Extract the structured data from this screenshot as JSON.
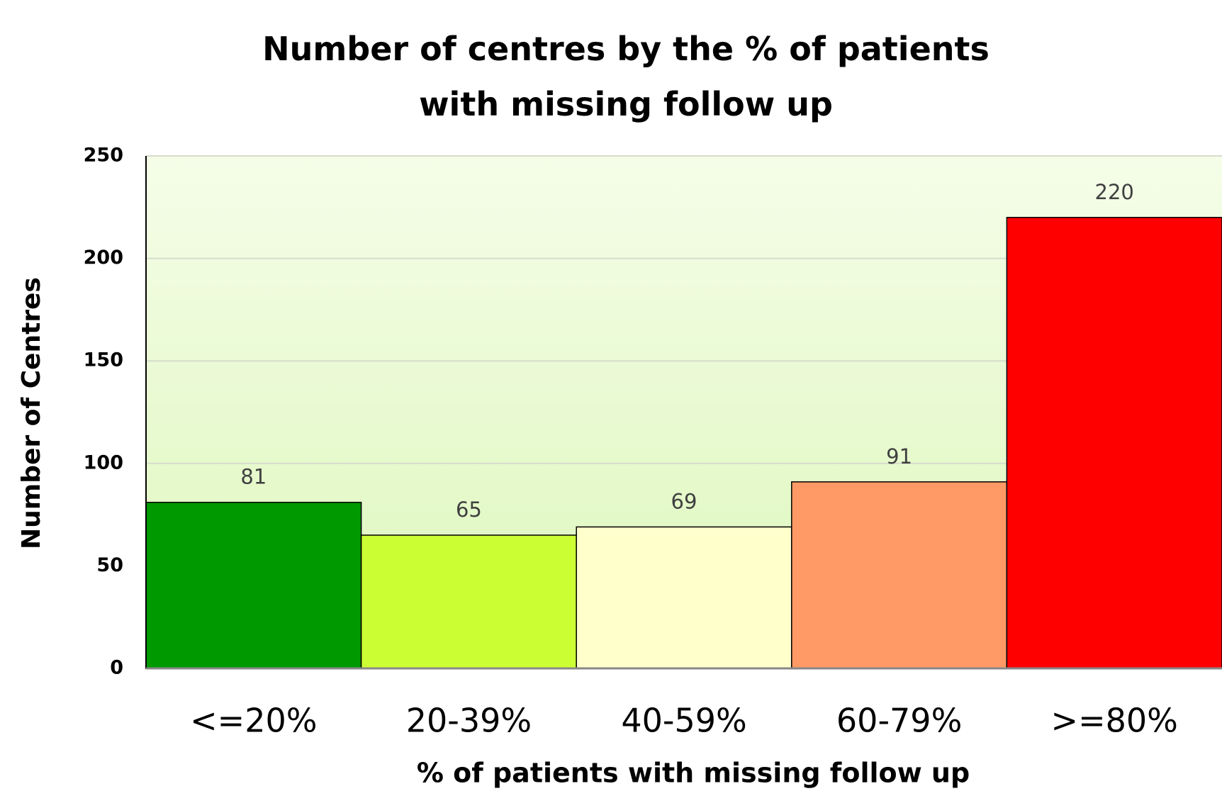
{
  "chart_data": {
    "type": "bar",
    "title": "Number of centres by the % of patients with missing follow up",
    "x_label": "% of patients with missing follow up",
    "y_label": "Number of Centres",
    "categories": [
      "<=20%",
      "20-39%",
      "40-59%",
      "60-79%",
      ">=80%"
    ],
    "values": [
      81,
      65,
      69,
      91,
      220
    ],
    "colors": [
      "#009900",
      "#ccff33",
      "#ffffcc",
      "#ff9966",
      "#ff0000"
    ],
    "ylim": [
      0,
      250
    ],
    "yticks": [
      0,
      50,
      100,
      150,
      200,
      250
    ],
    "grid": true
  }
}
